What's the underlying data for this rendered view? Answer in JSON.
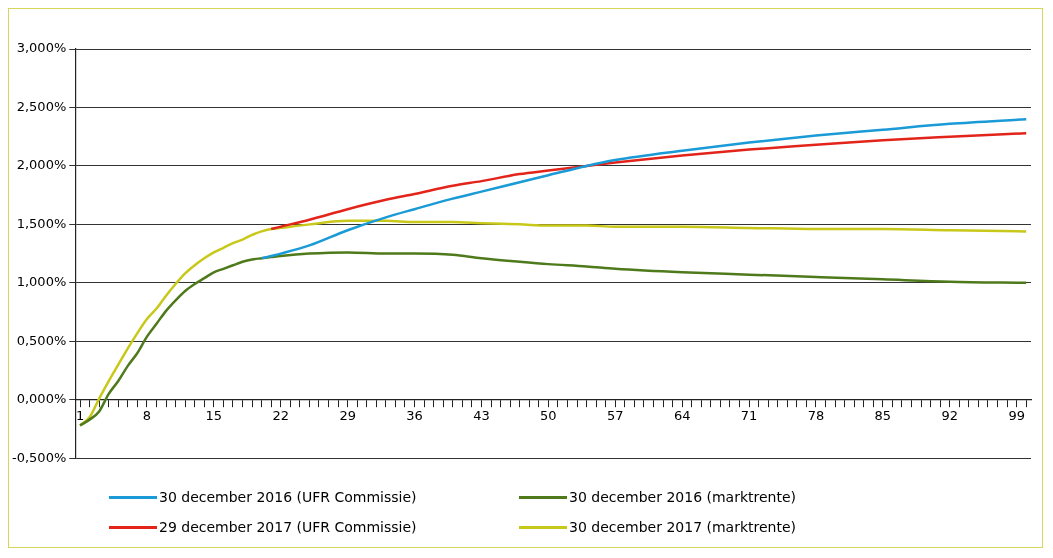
{
  "chart_data": {
    "type": "line",
    "x": [
      1,
      2,
      3,
      4,
      5,
      6,
      7,
      8,
      9,
      10,
      11,
      12,
      13,
      14,
      15,
      16,
      17,
      18,
      19,
      20,
      21,
      22,
      25,
      29,
      33,
      36,
      40,
      43,
      47,
      50,
      54,
      57,
      64,
      71,
      78,
      85,
      92,
      100
    ],
    "series": [
      {
        "name": "30 december 2016 (UFR Commissie)",
        "color": "#1a9ad6",
        "values": [
          null,
          null,
          null,
          null,
          null,
          null,
          null,
          null,
          null,
          null,
          null,
          null,
          null,
          null,
          null,
          null,
          null,
          null,
          null,
          1.21,
          1.23,
          1.25,
          1.32,
          1.45,
          1.56,
          1.63,
          1.72,
          1.78,
          1.86,
          1.92,
          2.0,
          2.05,
          2.13,
          2.2,
          2.26,
          2.31,
          2.36,
          2.4
        ]
      },
      {
        "name": "30 december 2016 (marktrente)",
        "color": "#4f7a1c",
        "values": [
          -0.22,
          -0.17,
          -0.1,
          0.05,
          0.16,
          0.29,
          0.4,
          0.54,
          0.65,
          0.76,
          0.85,
          0.93,
          0.99,
          1.04,
          1.09,
          1.12,
          1.15,
          1.18,
          1.2,
          1.21,
          1.22,
          1.23,
          1.25,
          1.26,
          1.25,
          1.25,
          1.24,
          1.21,
          1.18,
          1.16,
          1.14,
          1.12,
          1.09,
          1.07,
          1.05,
          1.03,
          1.01,
          1.0
        ]
      },
      {
        "name": "29 december 2017 (UFR Commissie)",
        "color": "#e3241b",
        "values": [
          null,
          null,
          null,
          null,
          null,
          null,
          null,
          null,
          null,
          null,
          null,
          null,
          null,
          null,
          null,
          null,
          null,
          null,
          null,
          null,
          1.46,
          1.48,
          1.54,
          1.63,
          1.71,
          1.76,
          1.83,
          1.87,
          1.93,
          1.96,
          2.0,
          2.03,
          2.09,
          2.14,
          2.18,
          2.22,
          2.25,
          2.28
        ]
      },
      {
        "name": "30 december 2017 (marktrente)",
        "color": "#c8c81a",
        "values": [
          -0.22,
          -0.15,
          0.01,
          0.16,
          0.3,
          0.44,
          0.57,
          0.69,
          0.78,
          0.89,
          0.99,
          1.08,
          1.15,
          1.21,
          1.26,
          1.3,
          1.34,
          1.37,
          1.41,
          1.44,
          1.46,
          1.47,
          1.5,
          1.53,
          1.53,
          1.52,
          1.52,
          1.51,
          1.5,
          1.49,
          1.49,
          1.48,
          1.48,
          1.47,
          1.46,
          1.46,
          1.45,
          1.44
        ]
      }
    ],
    "xlim": [
      0.5,
      100.5
    ],
    "xticks": [
      1,
      {
        "value": 2,
        "label": null
      },
      {
        "value": 3,
        "label": null
      },
      {
        "value": 4,
        "label": null
      },
      {
        "value": 5,
        "label": null
      },
      {
        "value": 6,
        "label": null
      },
      {
        "value": 7,
        "label": null
      },
      8,
      {
        "value": 9,
        "label": null
      },
      {
        "value": 10,
        "label": null
      },
      {
        "value": 11,
        "label": null
      },
      {
        "value": 12,
        "label": null
      },
      {
        "value": 13,
        "label": null
      },
      {
        "value": 14,
        "label": null
      },
      15,
      {
        "value": 16,
        "label": null
      },
      {
        "value": 17,
        "label": null
      },
      {
        "value": 18,
        "label": null
      },
      {
        "value": 19,
        "label": null
      },
      {
        "value": 20,
        "label": null
      },
      {
        "value": 21,
        "label": null
      },
      22,
      {
        "value": 23,
        "label": null
      },
      {
        "value": 24,
        "label": null
      },
      {
        "value": 25,
        "label": null
      },
      {
        "value": 26,
        "label": null
      },
      {
        "value": 27,
        "label": null
      },
      {
        "value": 28,
        "label": null
      },
      29,
      {
        "value": 30,
        "label": null
      },
      {
        "value": 31,
        "label": null
      },
      {
        "value": 32,
        "label": null
      },
      {
        "value": 33,
        "label": null
      },
      {
        "value": 34,
        "label": null
      },
      {
        "value": 35,
        "label": null
      },
      36,
      {
        "value": 37,
        "label": null
      },
      {
        "value": 38,
        "label": null
      },
      {
        "value": 39,
        "label": null
      },
      {
        "value": 40,
        "label": null
      },
      {
        "value": 41,
        "label": null
      },
      {
        "value": 42,
        "label": null
      },
      43,
      {
        "value": 44,
        "label": null
      },
      {
        "value": 45,
        "label": null
      },
      {
        "value": 46,
        "label": null
      },
      {
        "value": 47,
        "label": null
      },
      {
        "value": 48,
        "label": null
      },
      {
        "value": 49,
        "label": null
      },
      50,
      {
        "value": 51,
        "label": null
      },
      {
        "value": 52,
        "label": null
      },
      {
        "value": 53,
        "label": null
      },
      {
        "value": 54,
        "label": null
      },
      {
        "value": 55,
        "label": null
      },
      {
        "value": 56,
        "label": null
      },
      57,
      {
        "value": 58,
        "label": null
      },
      {
        "value": 59,
        "label": null
      },
      {
        "value": 60,
        "label": null
      },
      {
        "value": 61,
        "label": null
      },
      {
        "value": 62,
        "label": null
      },
      {
        "value": 63,
        "label": null
      },
      64,
      {
        "value": 65,
        "label": null
      },
      {
        "value": 66,
        "label": null
      },
      {
        "value": 67,
        "label": null
      },
      {
        "value": 68,
        "label": null
      },
      {
        "value": 69,
        "label": null
      },
      {
        "value": 70,
        "label": null
      },
      71,
      {
        "value": 72,
        "label": null
      },
      {
        "value": 73,
        "label": null
      },
      {
        "value": 74,
        "label": null
      },
      {
        "value": 75,
        "label": null
      },
      {
        "value": 76,
        "label": null
      },
      {
        "value": 77,
        "label": null
      },
      78,
      {
        "value": 79,
        "label": null
      },
      {
        "value": 80,
        "label": null
      },
      {
        "value": 81,
        "label": null
      },
      {
        "value": 82,
        "label": null
      },
      {
        "value": 83,
        "label": null
      },
      {
        "value": 84,
        "label": null
      },
      85,
      {
        "value": 86,
        "label": null
      },
      {
        "value": 87,
        "label": null
      },
      {
        "value": 88,
        "label": null
      },
      {
        "value": 89,
        "label": null
      },
      {
        "value": 90,
        "label": null
      },
      {
        "value": 91,
        "label": null
      },
      92,
      {
        "value": 93,
        "label": null
      },
      {
        "value": 94,
        "label": null
      },
      {
        "value": 95,
        "label": null
      },
      {
        "value": 96,
        "label": null
      },
      {
        "value": 97,
        "label": null
      },
      {
        "value": 98,
        "label": null
      },
      99,
      {
        "value": 100,
        "label": null
      }
    ],
    "ylim": [
      -0.5,
      3.0
    ],
    "yticks": [
      {
        "value": -0.5,
        "label": "-0,500%"
      },
      {
        "value": 0,
        "label": "0,000%"
      },
      {
        "value": 0.5,
        "label": "0,500%"
      },
      {
        "value": 1.0,
        "label": "1,000%"
      },
      {
        "value": 1.5,
        "label": "1,500%"
      },
      {
        "value": 2.0,
        "label": "2,000%"
      },
      {
        "value": 2.5,
        "label": "2,500%"
      },
      {
        "value": 3.0,
        "label": "3,000%"
      }
    ],
    "grid": "y",
    "legend": "bottom",
    "marker": "none",
    "line_style": "solid"
  }
}
